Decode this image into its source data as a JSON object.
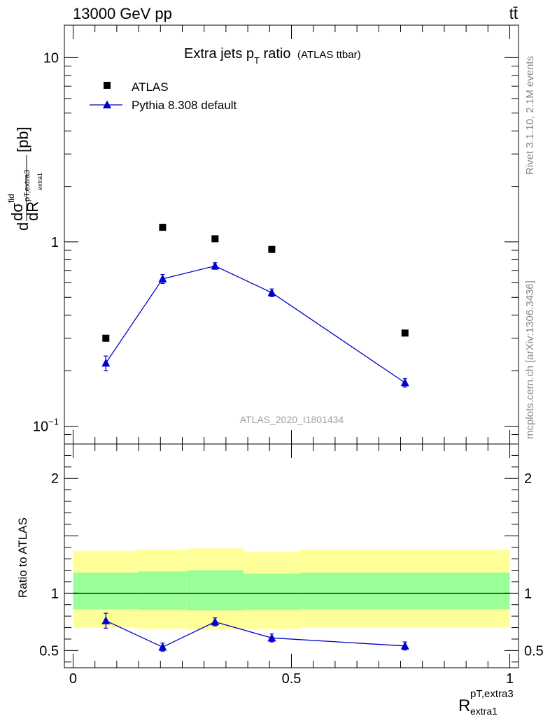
{
  "header": {
    "energy_label": "13000 GeV pp",
    "process_label": "tt̄"
  },
  "side_labels": {
    "rivet": "Rivet 3.1.10,  2.1M events",
    "site": "mcplots.cern.ch [arXiv:1306.3436]"
  },
  "chart_data": [
    {
      "type": "scatter",
      "panel": "main",
      "title_main": "Extra jets p",
      "title_sub": "T",
      "title_tail": " ratio",
      "title_paren": "(ATLAS ttbar)",
      "ylabel_lead": "d",
      "ylabel_sigma": "dσ",
      "ylabel_fid": "fid",
      "ylabel_inner_sub": "pT,extra3",
      "ylabel_R": "dR",
      "ylabel_R_sub": "extra1",
      "ylabel_unit": "[pb]",
      "yscale": "log",
      "ylim": [
        0.08,
        15
      ],
      "xlim": [
        -0.02,
        1.02
      ],
      "yticks": [
        {
          "value": 10,
          "label": "10"
        },
        {
          "value": 1,
          "label": "1"
        },
        {
          "value": 0.1,
          "label": "10",
          "sup": "−1"
        }
      ],
      "watermark": "ATLAS_2020_I1801434",
      "legend_position": "top-left",
      "series": [
        {
          "name": "ATLAS",
          "marker": "square",
          "color": "#000000",
          "x": [
            0.075,
            0.205,
            0.325,
            0.455,
            0.76
          ],
          "y": [
            0.3,
            1.2,
            1.04,
            0.91,
            0.32
          ]
        },
        {
          "name": "Pythia 8.308 default",
          "marker": "triangle",
          "color": "#0000cc",
          "x": [
            0.075,
            0.205,
            0.325,
            0.455,
            0.76
          ],
          "y": [
            0.22,
            0.63,
            0.74,
            0.53,
            0.172
          ],
          "err": [
            0.02,
            0.035,
            0.03,
            0.025,
            0.009
          ]
        }
      ]
    },
    {
      "type": "line",
      "panel": "ratio",
      "ylabel": "Ratio to ATLAS",
      "xlabel_main": "R",
      "xlabel_sup": "pT,extra3",
      "xlabel_sub": "extra1",
      "ylim": [
        0.35,
        2.3
      ],
      "xlim": [
        -0.02,
        1.02
      ],
      "yticks": [
        {
          "value": 2,
          "label": "2"
        },
        {
          "value": 1,
          "label": "1"
        },
        {
          "value": 0.5,
          "label": "0.5"
        }
      ],
      "xticks": [
        {
          "value": 0,
          "label": "0"
        },
        {
          "value": 0.5,
          "label": "0.5"
        },
        {
          "value": 1,
          "label": "1"
        }
      ],
      "bands": {
        "edges": [
          0,
          0.15,
          0.26,
          0.39,
          0.52,
          1.0
        ],
        "yellow_low": [
          0.7,
          0.69,
          0.68,
          0.69,
          0.7
        ],
        "yellow_high": [
          1.37,
          1.38,
          1.39,
          1.36,
          1.38
        ],
        "green_low": [
          0.86,
          0.855,
          0.85,
          0.855,
          0.86
        ],
        "green_high": [
          1.18,
          1.19,
          1.2,
          1.17,
          1.18
        ],
        "yellow_color": "#ffff99",
        "green_color": "#99ff99"
      },
      "series": [
        {
          "name": "Pythia 8.308 default",
          "color": "#0000cc",
          "x": [
            0.075,
            0.205,
            0.325,
            0.455,
            0.76
          ],
          "y": [
            0.76,
            0.53,
            0.75,
            0.61,
            0.54
          ],
          "err": [
            0.065,
            0.035,
            0.035,
            0.035,
            0.035
          ]
        }
      ]
    }
  ]
}
